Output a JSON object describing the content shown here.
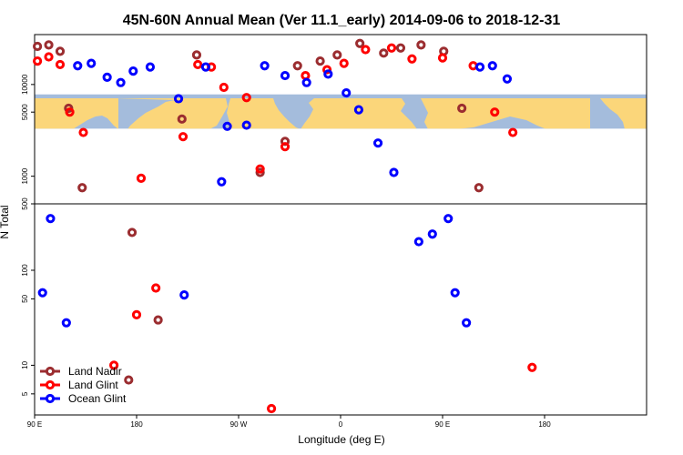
{
  "chart_data": {
    "type": "scatter",
    "title": "45N-60N Annual Mean (Ver 11.1_early)   2014-09-06 to 2018-12-31",
    "xlabel": "Longitude (deg E)",
    "ylabel": "N Total",
    "x_ticks": [
      "90 E",
      "180",
      "90 W",
      "0",
      "90 E",
      "180"
    ],
    "y_ticks_lower": [
      "5",
      "10",
      "50",
      "100",
      "500"
    ],
    "y_ticks_upper": [
      "1000",
      "5000",
      "10000"
    ],
    "y_scale": "log",
    "y_split": 500,
    "ylim_lower": [
      3,
      500
    ],
    "ylim_upper": [
      500,
      35000
    ],
    "map_band": {
      "ymin": 3300,
      "ymax": 7800,
      "ocean_color": "#a4bcdc",
      "land_color": "#fbd67a"
    },
    "x_order": "longitude 90E -> 180 -> 90W -> 0 -> 90E -> 180 (540 deg span)",
    "legend": {
      "position": "bottom-left",
      "entries": [
        "Land Nadir",
        "Land Glint",
        "Ocean Glint"
      ]
    },
    "series": [
      {
        "name": "Land Nadir",
        "color": "#9b2d30",
        "points": [
          [
            92.5,
            26000
          ],
          [
            102.5,
            27000
          ],
          [
            112.5,
            23000
          ],
          [
            120,
            5500
          ],
          [
            132,
            750
          ],
          [
            173,
            7
          ],
          [
            176,
            250
          ],
          [
            199,
            30
          ],
          [
            220,
            4200
          ],
          [
            233,
            21000
          ],
          [
            289,
            1100
          ],
          [
            311,
            2400
          ],
          [
            322,
            16000
          ],
          [
            342,
            18000
          ],
          [
            357,
            21000
          ],
          [
            377,
            28000
          ],
          [
            398,
            22000
          ],
          [
            413,
            25000
          ],
          [
            431,
            27000
          ],
          [
            451,
            23000
          ],
          [
            467,
            5500
          ],
          [
            482,
            750
          ]
        ]
      },
      {
        "name": "Land Glint",
        "color": "#ff0000",
        "points": [
          [
            92.5,
            18000
          ],
          [
            102.5,
            20000
          ],
          [
            112.5,
            16500
          ],
          [
            121,
            5000
          ],
          [
            133,
            3000
          ],
          [
            160,
            10
          ],
          [
            180,
            34
          ],
          [
            184,
            950
          ],
          [
            197,
            65
          ],
          [
            221,
            2700
          ],
          [
            234,
            16500
          ],
          [
            246,
            15500
          ],
          [
            257,
            9300
          ],
          [
            277,
            7200
          ],
          [
            289,
            1200
          ],
          [
            299,
            3.5
          ],
          [
            311,
            2100
          ],
          [
            329,
            12500
          ],
          [
            348,
            14500
          ],
          [
            363,
            17000
          ],
          [
            382,
            24000
          ],
          [
            405,
            25000
          ],
          [
            423,
            19000
          ],
          [
            450,
            19500
          ],
          [
            477,
            16000
          ],
          [
            496,
            5000
          ],
          [
            512,
            3000
          ],
          [
            529,
            9.5
          ]
        ]
      },
      {
        "name": "Ocean Glint",
        "color": "#0000ff",
        "points": [
          [
            97,
            58
          ],
          [
            104,
            350
          ],
          [
            118,
            28
          ],
          [
            128,
            16000
          ],
          [
            140,
            17000
          ],
          [
            154,
            12000
          ],
          [
            166,
            10500
          ],
          [
            177,
            14000
          ],
          [
            192,
            15500
          ],
          [
            217,
            7000
          ],
          [
            222,
            55
          ],
          [
            241,
            15500
          ],
          [
            255,
            870
          ],
          [
            260,
            3500
          ],
          [
            277,
            3600
          ],
          [
            293,
            16000
          ],
          [
            311,
            12500
          ],
          [
            330,
            10500
          ],
          [
            349,
            13000
          ],
          [
            365,
            8100
          ],
          [
            376,
            5300
          ],
          [
            393,
            2300
          ],
          [
            407,
            1100
          ],
          [
            429,
            200
          ],
          [
            441,
            240
          ],
          [
            455,
            350
          ],
          [
            461,
            58
          ],
          [
            471,
            28
          ],
          [
            483,
            15500
          ],
          [
            494,
            16000
          ],
          [
            507,
            11500
          ]
        ]
      }
    ]
  }
}
